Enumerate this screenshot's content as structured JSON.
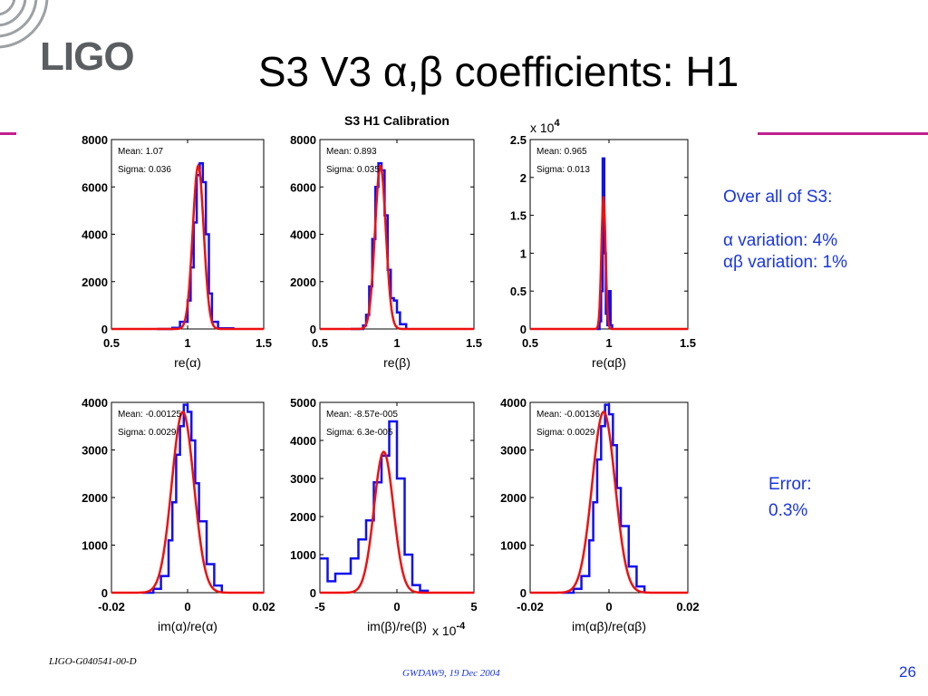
{
  "slide": {
    "title": "S3 V3 α,β coefficients: H1",
    "logo_text": "LIGO",
    "notes": [
      "Over all of S3:",
      "",
      "α variation: 4%",
      "αβ variation: 1%"
    ],
    "error_notes": [
      "Error:",
      "0.3%"
    ],
    "footer_left": "LIGO-G040541-00-D",
    "footer_center": "GWDAW9, 19 Dec 2004",
    "page_number": "26",
    "colors": {
      "accent_line": "#c0208f",
      "text_blue": "#1a36e0",
      "logo_gray": "#5b5e61",
      "histogram": "#1010ee",
      "fit": "#ee1010"
    }
  },
  "chart_data": [
    {
      "type": "histogram",
      "title": "",
      "xlabel": "re(α)",
      "ylabel": "",
      "xlim": [
        0.5,
        1.5
      ],
      "ylim": [
        0,
        8000
      ],
      "xticks": [
        "0.5",
        "1",
        "1.5"
      ],
      "yticks": [
        "0",
        "2000",
        "4000",
        "6000",
        "8000"
      ],
      "exponent_label": "",
      "stats": [
        "Mean: 1.07",
        "Sigma: 0.036"
      ],
      "series": [
        {
          "kind": "histogram",
          "x": [
            0.8,
            0.9,
            0.95,
            1.0,
            1.02,
            1.04,
            1.06,
            1.08,
            1.1,
            1.12,
            1.14,
            1.16,
            1.2,
            1.3
          ],
          "y": [
            0,
            50,
            300,
            1200,
            2600,
            4500,
            6500,
            7000,
            6200,
            4000,
            1500,
            300,
            30,
            0
          ]
        },
        {
          "kind": "gaussian-fit",
          "mean": 1.07,
          "sigma": 0.036,
          "peak": 6900
        }
      ]
    },
    {
      "type": "histogram",
      "title": "S3 H1 Calibration",
      "xlabel": "re(β)",
      "ylabel": "",
      "xlim": [
        0.5,
        1.5
      ],
      "ylim": [
        0,
        8000
      ],
      "xticks": [
        "0.5",
        "1",
        "1.5"
      ],
      "yticks": [
        "0",
        "2000",
        "4000",
        "6000",
        "8000"
      ],
      "exponent_label": "",
      "stats": [
        "Mean: 0.893",
        "Sigma: 0.035"
      ],
      "series": [
        {
          "kind": "histogram",
          "x": [
            0.7,
            0.78,
            0.8,
            0.82,
            0.84,
            0.86,
            0.88,
            0.9,
            0.92,
            0.94,
            0.96,
            0.98,
            1.0,
            1.02,
            1.06
          ],
          "y": [
            0,
            150,
            600,
            1800,
            3800,
            6000,
            7000,
            6700,
            4800,
            2500,
            1300,
            1200,
            700,
            200,
            0
          ]
        },
        {
          "kind": "gaussian-fit",
          "mean": 0.893,
          "sigma": 0.035,
          "peak": 6900
        }
      ]
    },
    {
      "type": "histogram",
      "title": "",
      "xlabel": "re(αβ)",
      "ylabel": "",
      "xlim": [
        0.5,
        1.5
      ],
      "ylim": [
        0,
        2.5
      ],
      "xticks": [
        "0.5",
        "1",
        "1.5"
      ],
      "yticks": [
        "0",
        "0.5",
        "1",
        "1.5",
        "2",
        "2.5"
      ],
      "exponent_label": "x 10^4",
      "stats": [
        "Mean: 0.965",
        "Sigma: 0.013"
      ],
      "series": [
        {
          "kind": "histogram",
          "x": [
            0.92,
            0.94,
            0.95,
            0.96,
            0.97,
            0.98,
            0.99,
            1.0,
            1.01,
            1.02
          ],
          "y": [
            0,
            0.1,
            0.5,
            2.25,
            1.0,
            0.2,
            0.05,
            0.5,
            0.05,
            0
          ]
        },
        {
          "kind": "gaussian-fit",
          "mean": 0.965,
          "sigma": 0.013,
          "peak": 1.75
        }
      ]
    },
    {
      "type": "histogram",
      "title": "",
      "xlabel": "im(α)/re(α)",
      "ylabel": "",
      "xlim": [
        -0.02,
        0.02
      ],
      "ylim": [
        0,
        4000
      ],
      "xticks": [
        "-0.02",
        "0",
        "0.02"
      ],
      "yticks": [
        "0",
        "1000",
        "2000",
        "3000",
        "4000"
      ],
      "exponent_label": "",
      "stats": [
        "Mean: -0.00125",
        "Sigma: 0.0029"
      ],
      "series": [
        {
          "kind": "histogram",
          "x": [
            -0.012,
            -0.009,
            -0.007,
            -0.005,
            -0.004,
            -0.003,
            -0.002,
            -0.001,
            0.0,
            0.001,
            0.002,
            0.003,
            0.005,
            0.007,
            0.009
          ],
          "y": [
            0,
            80,
            350,
            1100,
            1900,
            2900,
            3500,
            3950,
            3800,
            3200,
            2300,
            1500,
            600,
            150,
            0
          ]
        },
        {
          "kind": "gaussian-fit",
          "mean": -0.00125,
          "sigma": 0.0029,
          "peak": 3800
        }
      ]
    },
    {
      "type": "histogram",
      "title": "",
      "xlabel": "im(β)/re(β)",
      "ylabel": "",
      "xlim": [
        -5,
        5
      ],
      "ylim": [
        0,
        5000
      ],
      "xticks": [
        "-5",
        "0",
        "5"
      ],
      "yticks": [
        "0",
        "1000",
        "2000",
        "3000",
        "4000",
        "5000"
      ],
      "exponent_label": "x 10^-4",
      "stats": [
        "Mean: -8.57e-005",
        "Sigma: 6.3e-005"
      ],
      "series": [
        {
          "kind": "histogram",
          "x": [
            -5,
            -4.5,
            -4,
            -3,
            -2.5,
            -2,
            -1.5,
            -1,
            -0.5,
            0,
            0.5,
            1,
            1.5,
            2
          ],
          "y": [
            900,
            300,
            500,
            900,
            1400,
            1900,
            2900,
            3600,
            4500,
            3000,
            1000,
            200,
            50,
            0
          ]
        },
        {
          "kind": "gaussian-fit",
          "mean": -0.857,
          "sigma": 0.63,
          "peak": 3700
        }
      ]
    },
    {
      "type": "histogram",
      "title": "",
      "xlabel": "im(αβ)/re(αβ)",
      "ylabel": "",
      "xlim": [
        -0.02,
        0.02
      ],
      "ylim": [
        0,
        4000
      ],
      "xticks": [
        "-0.02",
        "0",
        "0.02"
      ],
      "yticks": [
        "0",
        "1000",
        "2000",
        "3000",
        "4000"
      ],
      "exponent_label": "",
      "stats": [
        "Mean: -0.00136",
        "Sigma: 0.0029"
      ],
      "series": [
        {
          "kind": "histogram",
          "x": [
            -0.012,
            -0.009,
            -0.007,
            -0.005,
            -0.004,
            -0.003,
            -0.002,
            -0.001,
            0.0,
            0.001,
            0.002,
            0.003,
            0.005,
            0.007,
            0.009
          ],
          "y": [
            0,
            80,
            350,
            1100,
            1900,
            2800,
            3500,
            3950,
            3750,
            3100,
            2200,
            1400,
            550,
            130,
            0
          ]
        },
        {
          "kind": "gaussian-fit",
          "mean": -0.00136,
          "sigma": 0.0029,
          "peak": 3800
        }
      ]
    }
  ]
}
